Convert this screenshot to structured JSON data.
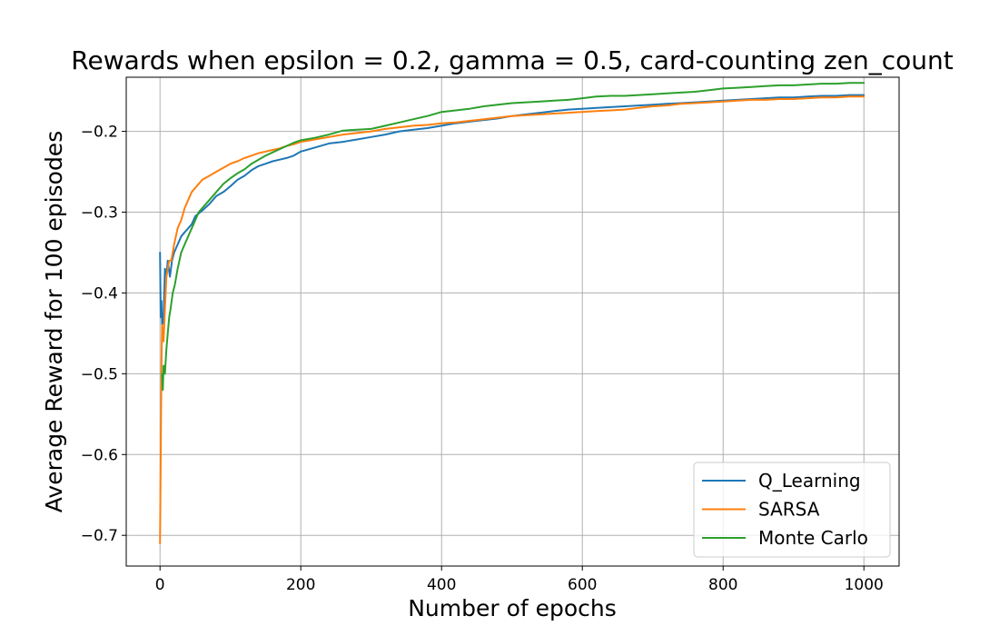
{
  "chart_data": {
    "type": "line",
    "title": "Rewards when epsilon = 0.2, gamma = 0.5, card-counting zen_count",
    "xlabel": "Number of epochs",
    "ylabel": "Average Reward for 100 episodes",
    "xlim": [
      -48,
      1050
    ],
    "ylim": [
      -0.738,
      -0.133
    ],
    "xticks": [
      0,
      200,
      400,
      600,
      800,
      1000
    ],
    "yticks": [
      -0.7,
      -0.6,
      -0.5,
      -0.4,
      -0.3,
      -0.2
    ],
    "xtick_labels": [
      "0",
      "200",
      "400",
      "600",
      "800",
      "1000"
    ],
    "ytick_labels": [
      "−0.7",
      "−0.6",
      "−0.5",
      "−0.4",
      "−0.3",
      "−0.2"
    ],
    "grid": true,
    "legend_position": "lower-right",
    "series": [
      {
        "name": "Q_Learning",
        "color": "#1f77b4",
        "points": [
          [
            0,
            -0.35
          ],
          [
            1,
            -0.43
          ],
          [
            2,
            -0.41
          ],
          [
            3,
            -0.44
          ],
          [
            5,
            -0.43
          ],
          [
            7,
            -0.37
          ],
          [
            9,
            -0.38
          ],
          [
            11,
            -0.36
          ],
          [
            14,
            -0.38
          ],
          [
            17,
            -0.36
          ],
          [
            20,
            -0.35
          ],
          [
            25,
            -0.34
          ],
          [
            30,
            -0.33
          ],
          [
            35,
            -0.325
          ],
          [
            40,
            -0.32
          ],
          [
            45,
            -0.315
          ],
          [
            50,
            -0.305
          ],
          [
            60,
            -0.298
          ],
          [
            70,
            -0.29
          ],
          [
            80,
            -0.28
          ],
          [
            90,
            -0.275
          ],
          [
            100,
            -0.268
          ],
          [
            110,
            -0.26
          ],
          [
            120,
            -0.255
          ],
          [
            130,
            -0.248
          ],
          [
            140,
            -0.243
          ],
          [
            150,
            -0.24
          ],
          [
            160,
            -0.237
          ],
          [
            170,
            -0.235
          ],
          [
            180,
            -0.233
          ],
          [
            190,
            -0.23
          ],
          [
            200,
            -0.225
          ],
          [
            220,
            -0.22
          ],
          [
            240,
            -0.215
          ],
          [
            260,
            -0.213
          ],
          [
            280,
            -0.21
          ],
          [
            300,
            -0.207
          ],
          [
            320,
            -0.204
          ],
          [
            340,
            -0.2
          ],
          [
            360,
            -0.198
          ],
          [
            380,
            -0.196
          ],
          [
            400,
            -0.193
          ],
          [
            420,
            -0.19
          ],
          [
            440,
            -0.188
          ],
          [
            460,
            -0.186
          ],
          [
            480,
            -0.184
          ],
          [
            500,
            -0.181
          ],
          [
            520,
            -0.179
          ],
          [
            540,
            -0.177
          ],
          [
            560,
            -0.175
          ],
          [
            580,
            -0.173
          ],
          [
            600,
            -0.172
          ],
          [
            620,
            -0.171
          ],
          [
            640,
            -0.17
          ],
          [
            660,
            -0.169
          ],
          [
            680,
            -0.168
          ],
          [
            700,
            -0.167
          ],
          [
            720,
            -0.166
          ],
          [
            740,
            -0.165
          ],
          [
            760,
            -0.164
          ],
          [
            780,
            -0.163
          ],
          [
            800,
            -0.162
          ],
          [
            820,
            -0.161
          ],
          [
            840,
            -0.16
          ],
          [
            860,
            -0.159
          ],
          [
            880,
            -0.158
          ],
          [
            900,
            -0.158
          ],
          [
            920,
            -0.157
          ],
          [
            940,
            -0.156
          ],
          [
            960,
            -0.156
          ],
          [
            980,
            -0.155
          ],
          [
            1000,
            -0.155
          ]
        ]
      },
      {
        "name": "SARSA",
        "color": "#ff7f0e",
        "points": [
          [
            0,
            -0.71
          ],
          [
            1,
            -0.6
          ],
          [
            2,
            -0.49
          ],
          [
            3,
            -0.44
          ],
          [
            5,
            -0.46
          ],
          [
            7,
            -0.42
          ],
          [
            9,
            -0.38
          ],
          [
            11,
            -0.37
          ],
          [
            13,
            -0.36
          ],
          [
            16,
            -0.36
          ],
          [
            20,
            -0.34
          ],
          [
            25,
            -0.32
          ],
          [
            30,
            -0.31
          ],
          [
            35,
            -0.295
          ],
          [
            40,
            -0.285
          ],
          [
            45,
            -0.275
          ],
          [
            50,
            -0.27
          ],
          [
            60,
            -0.26
          ],
          [
            70,
            -0.255
          ],
          [
            80,
            -0.25
          ],
          [
            90,
            -0.245
          ],
          [
            100,
            -0.24
          ],
          [
            110,
            -0.237
          ],
          [
            120,
            -0.233
          ],
          [
            130,
            -0.23
          ],
          [
            140,
            -0.227
          ],
          [
            150,
            -0.225
          ],
          [
            160,
            -0.223
          ],
          [
            170,
            -0.221
          ],
          [
            180,
            -0.218
          ],
          [
            190,
            -0.216
          ],
          [
            200,
            -0.213
          ],
          [
            220,
            -0.21
          ],
          [
            240,
            -0.207
          ],
          [
            260,
            -0.204
          ],
          [
            280,
            -0.202
          ],
          [
            300,
            -0.2
          ],
          [
            320,
            -0.197
          ],
          [
            340,
            -0.195
          ],
          [
            360,
            -0.193
          ],
          [
            380,
            -0.192
          ],
          [
            400,
            -0.19
          ],
          [
            420,
            -0.189
          ],
          [
            440,
            -0.187
          ],
          [
            460,
            -0.185
          ],
          [
            480,
            -0.183
          ],
          [
            500,
            -0.181
          ],
          [
            520,
            -0.18
          ],
          [
            540,
            -0.179
          ],
          [
            560,
            -0.178
          ],
          [
            580,
            -0.177
          ],
          [
            600,
            -0.176
          ],
          [
            620,
            -0.175
          ],
          [
            640,
            -0.174
          ],
          [
            660,
            -0.173
          ],
          [
            680,
            -0.171
          ],
          [
            700,
            -0.169
          ],
          [
            720,
            -0.168
          ],
          [
            740,
            -0.166
          ],
          [
            760,
            -0.165
          ],
          [
            780,
            -0.164
          ],
          [
            800,
            -0.163
          ],
          [
            820,
            -0.162
          ],
          [
            840,
            -0.161
          ],
          [
            860,
            -0.161
          ],
          [
            880,
            -0.16
          ],
          [
            900,
            -0.16
          ],
          [
            920,
            -0.159
          ],
          [
            940,
            -0.158
          ],
          [
            960,
            -0.158
          ],
          [
            980,
            -0.157
          ],
          [
            1000,
            -0.157
          ]
        ]
      },
      {
        "name": "Monte Carlo",
        "color": "#2ca02c",
        "points": [
          [
            3,
            -0.5
          ],
          [
            4,
            -0.52
          ],
          [
            5,
            -0.49
          ],
          [
            7,
            -0.5
          ],
          [
            9,
            -0.47
          ],
          [
            11,
            -0.45
          ],
          [
            13,
            -0.43
          ],
          [
            15,
            -0.42
          ],
          [
            18,
            -0.4
          ],
          [
            21,
            -0.39
          ],
          [
            25,
            -0.37
          ],
          [
            30,
            -0.35
          ],
          [
            35,
            -0.34
          ],
          [
            40,
            -0.33
          ],
          [
            45,
            -0.32
          ],
          [
            50,
            -0.31
          ],
          [
            55,
            -0.3
          ],
          [
            60,
            -0.295
          ],
          [
            70,
            -0.285
          ],
          [
            80,
            -0.275
          ],
          [
            90,
            -0.265
          ],
          [
            100,
            -0.258
          ],
          [
            110,
            -0.252
          ],
          [
            120,
            -0.247
          ],
          [
            130,
            -0.24
          ],
          [
            140,
            -0.235
          ],
          [
            150,
            -0.23
          ],
          [
            160,
            -0.226
          ],
          [
            170,
            -0.222
          ],
          [
            180,
            -0.218
          ],
          [
            190,
            -0.214
          ],
          [
            200,
            -0.211
          ],
          [
            220,
            -0.208
          ],
          [
            240,
            -0.204
          ],
          [
            260,
            -0.199
          ],
          [
            280,
            -0.198
          ],
          [
            300,
            -0.197
          ],
          [
            320,
            -0.193
          ],
          [
            340,
            -0.189
          ],
          [
            360,
            -0.185
          ],
          [
            380,
            -0.181
          ],
          [
            400,
            -0.176
          ],
          [
            420,
            -0.174
          ],
          [
            440,
            -0.172
          ],
          [
            460,
            -0.169
          ],
          [
            480,
            -0.167
          ],
          [
            500,
            -0.165
          ],
          [
            520,
            -0.164
          ],
          [
            540,
            -0.163
          ],
          [
            560,
            -0.162
          ],
          [
            580,
            -0.161
          ],
          [
            600,
            -0.159
          ],
          [
            620,
            -0.157
          ],
          [
            640,
            -0.156
          ],
          [
            660,
            -0.156
          ],
          [
            680,
            -0.155
          ],
          [
            700,
            -0.154
          ],
          [
            720,
            -0.153
          ],
          [
            740,
            -0.152
          ],
          [
            760,
            -0.151
          ],
          [
            780,
            -0.149
          ],
          [
            800,
            -0.147
          ],
          [
            820,
            -0.146
          ],
          [
            840,
            -0.145
          ],
          [
            860,
            -0.144
          ],
          [
            880,
            -0.143
          ],
          [
            900,
            -0.143
          ],
          [
            920,
            -0.142
          ],
          [
            940,
            -0.141
          ],
          [
            960,
            -0.141
          ],
          [
            980,
            -0.14
          ],
          [
            1000,
            -0.14
          ]
        ]
      }
    ]
  }
}
